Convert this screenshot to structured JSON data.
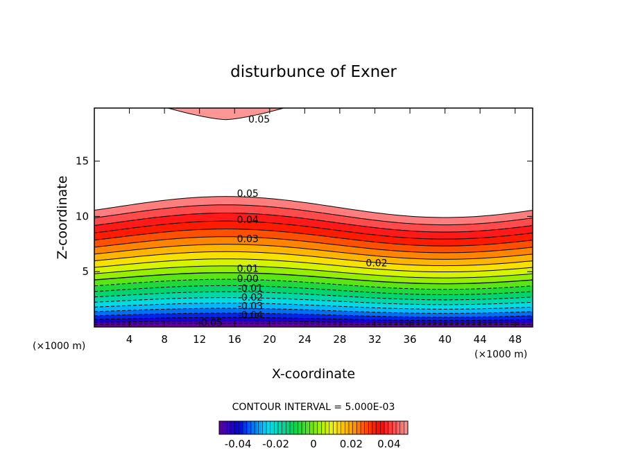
{
  "chart_data": {
    "type": "contour",
    "title": "disturbunce of Exner",
    "xlabel": "X-coordinate",
    "ylabel": "Z-coordinate",
    "x_unit": "(×1000 m)",
    "y_unit": "(×1000 m)",
    "xlim": [
      0,
      50
    ],
    "ylim": [
      0,
      19.8
    ],
    "x_ticks": [
      "4",
      "8",
      "12",
      "16",
      "20",
      "24",
      "28",
      "32",
      "36",
      "40",
      "44",
      "48"
    ],
    "y_ticks": [
      "5",
      "10",
      "15"
    ],
    "contour_interval_text": "CONTOUR INTERVAL = 5.000E-03",
    "levels": [
      -0.05,
      -0.045,
      -0.04,
      -0.035,
      -0.03,
      -0.025,
      -0.02,
      -0.015,
      -0.01,
      -0.005,
      0.0,
      0.005,
      0.01,
      0.015,
      0.02,
      0.025,
      0.03,
      0.035,
      0.04,
      0.045,
      0.05
    ],
    "contour_labels": [
      {
        "text": "0.05",
        "x": 18.8,
        "z": 18.8
      },
      {
        "text": "0.05",
        "x": 17.5,
        "z": 12.1
      },
      {
        "text": "0.04",
        "x": 17.5,
        "z": 9.7
      },
      {
        "text": "0.03",
        "x": 17.5,
        "z": 8.0
      },
      {
        "text": "0.02",
        "x": 32.2,
        "z": 5.8
      },
      {
        "text": "0.01",
        "x": 17.5,
        "z": 5.3
      },
      {
        "text": "0.00",
        "x": 17.5,
        "z": 4.4
      },
      {
        "text": "-0.01",
        "x": 17.8,
        "z": 3.5
      },
      {
        "text": "-0.02",
        "x": 17.8,
        "z": 2.7
      },
      {
        "text": "-0.03",
        "x": 17.8,
        "z": 1.9
      },
      {
        "text": "-0.04",
        "x": 17.8,
        "z": 1.1
      },
      {
        "text": "-0.05",
        "x": 13.2,
        "z": 0.4
      }
    ],
    "colorbar": {
      "range": [
        -0.05,
        0.05
      ],
      "ticks": [
        "-0.04",
        "-0.02",
        "0",
        "0.02",
        "0.04"
      ],
      "tick_values": [
        -0.04,
        -0.02,
        0,
        0.02,
        0.04
      ]
    }
  }
}
